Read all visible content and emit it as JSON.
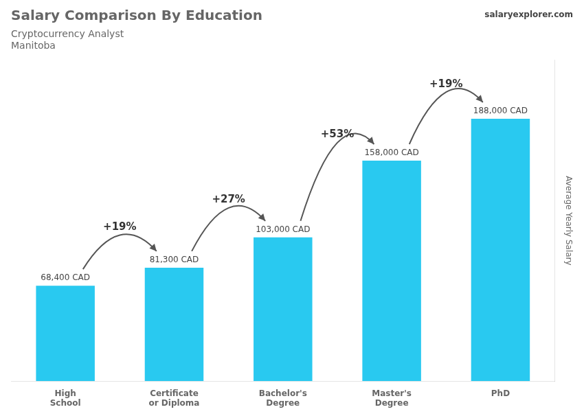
{
  "chart_data": {
    "type": "bar",
    "title": "Salary Comparison By Education",
    "subtitle": [
      "Cryptocurrency Analyst",
      "Manitoba"
    ],
    "source": "salaryexplorer.com",
    "y_label": "Average Yearly Salary",
    "categories": [
      "High\nSchool",
      "Certificate\nor Diploma",
      "Bachelor's\nDegree",
      "Master's\nDegree",
      "PhD"
    ],
    "values": [
      68400,
      81300,
      103000,
      158000,
      188000
    ],
    "value_labels": [
      "68,400 CAD",
      "81,300 CAD",
      "103,000 CAD",
      "158,000 CAD",
      "188,000 CAD"
    ],
    "data_labels": true,
    "annotations": [
      "+19%",
      "+27%",
      "+53%",
      "+19%"
    ],
    "color": "#29c9f0",
    "ylim": [
      0,
      230000
    ],
    "grid": false,
    "tick_labels": "x"
  }
}
